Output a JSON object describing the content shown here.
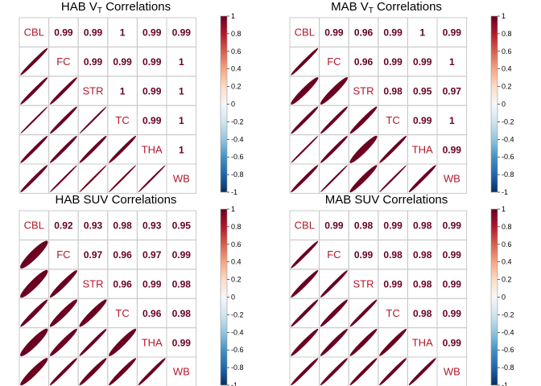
{
  "variables": [
    "CBL",
    "FC",
    "STR",
    "TC",
    "THA",
    "WB"
  ],
  "colorbar": {
    "ticks": [
      "1",
      "0.8",
      "0.6",
      "0.4",
      "0.2",
      "0",
      "-0.2",
      "-0.4",
      "-0.6",
      "-0.8",
      "-1"
    ],
    "colors": [
      "#67001f",
      "#b2182b",
      "#d6604d",
      "#f4a582",
      "#fddbc7",
      "#f7f7f7",
      "#d1e5f0",
      "#92c5de",
      "#4393c3",
      "#2166ac",
      "#053061"
    ]
  },
  "chart_data": [
    {
      "type": "heatmap",
      "title_main": "HAB V",
      "title_sub": "T",
      "title_rest": " Correlations",
      "variables": [
        "CBL",
        "FC",
        "STR",
        "TC",
        "THA",
        "WB"
      ],
      "upper_labels": [
        [
          "",
          "0.99",
          "0.99",
          "1",
          "0.99",
          "0.99"
        ],
        [
          "",
          "",
          "0.99",
          "0.99",
          "0.99",
          "1"
        ],
        [
          "",
          "",
          "",
          "1",
          "0.99",
          "1"
        ],
        [
          "",
          "",
          "",
          "",
          "0.99",
          "1"
        ],
        [
          "",
          "",
          "",
          "",
          "",
          "1"
        ],
        [
          "",
          "",
          "",
          "",
          "",
          ""
        ]
      ],
      "matrix": [
        [
          1,
          0.99,
          0.99,
          1.0,
          0.99,
          0.99
        ],
        [
          0.99,
          1,
          0.99,
          0.99,
          0.99,
          1.0
        ],
        [
          0.99,
          0.99,
          1,
          1.0,
          0.99,
          1.0
        ],
        [
          1.0,
          0.99,
          1.0,
          1,
          0.99,
          1.0
        ],
        [
          0.99,
          0.99,
          0.99,
          0.99,
          1,
          1.0
        ],
        [
          0.99,
          1.0,
          1.0,
          1.0,
          1.0,
          1
        ]
      ],
      "color_range": [
        -1,
        1
      ]
    },
    {
      "type": "heatmap",
      "title_main": "MAB V",
      "title_sub": "T",
      "title_rest": " Correlations",
      "variables": [
        "CBL",
        "FC",
        "STR",
        "TC",
        "THA",
        "WB"
      ],
      "upper_labels": [
        [
          "",
          "0.99",
          "0.96",
          "0.99",
          "1",
          "0.99"
        ],
        [
          "",
          "",
          "0.96",
          "0.99",
          "0.99",
          "1"
        ],
        [
          "",
          "",
          "",
          "0.98",
          "0.95",
          "0.97"
        ],
        [
          "",
          "",
          "",
          "",
          "0.99",
          "1"
        ],
        [
          "",
          "",
          "",
          "",
          "",
          "0.99"
        ],
        [
          "",
          "",
          "",
          "",
          "",
          ""
        ]
      ],
      "matrix": [
        [
          1,
          0.99,
          0.96,
          0.99,
          1.0,
          0.99
        ],
        [
          0.99,
          1,
          0.96,
          0.99,
          0.99,
          1.0
        ],
        [
          0.96,
          0.96,
          1,
          0.98,
          0.95,
          0.97
        ],
        [
          0.99,
          0.99,
          0.98,
          1,
          0.99,
          1.0
        ],
        [
          1.0,
          0.99,
          0.95,
          0.99,
          1,
          0.99
        ],
        [
          0.99,
          1.0,
          0.97,
          1.0,
          0.99,
          1
        ]
      ],
      "color_range": [
        -1,
        1
      ]
    },
    {
      "type": "heatmap",
      "title_main": "HAB SUV Correlations",
      "title_sub": "",
      "title_rest": "",
      "variables": [
        "CBL",
        "FC",
        "STR",
        "TC",
        "THA",
        "WB"
      ],
      "upper_labels": [
        [
          "",
          "0.92",
          "0.93",
          "0.98",
          "0.93",
          "0.95"
        ],
        [
          "",
          "",
          "0.97",
          "0.96",
          "0.97",
          "0.99"
        ],
        [
          "",
          "",
          "",
          "0.96",
          "0.99",
          "0.98"
        ],
        [
          "",
          "",
          "",
          "",
          "0.96",
          "0.98"
        ],
        [
          "",
          "",
          "",
          "",
          "",
          "0.99"
        ],
        [
          "",
          "",
          "",
          "",
          "",
          ""
        ]
      ],
      "matrix": [
        [
          1,
          0.92,
          0.93,
          0.98,
          0.93,
          0.95
        ],
        [
          0.92,
          1,
          0.97,
          0.96,
          0.97,
          0.99
        ],
        [
          0.93,
          0.97,
          1,
          0.96,
          0.99,
          0.98
        ],
        [
          0.98,
          0.96,
          0.96,
          1,
          0.96,
          0.98
        ],
        [
          0.93,
          0.97,
          0.99,
          0.96,
          1,
          0.99
        ],
        [
          0.95,
          0.99,
          0.98,
          0.98,
          0.99,
          1
        ]
      ],
      "color_range": [
        -1,
        1
      ]
    },
    {
      "type": "heatmap",
      "title_main": "MAB SUV Correlations",
      "title_sub": "",
      "title_rest": "",
      "variables": [
        "CBL",
        "FC",
        "STR",
        "TC",
        "THA",
        "WB"
      ],
      "upper_labels": [
        [
          "",
          "0.99",
          "0.98",
          "0.99",
          "0.98",
          "0.99"
        ],
        [
          "",
          "",
          "0.99",
          "0.98",
          "0.98",
          "0.99"
        ],
        [
          "",
          "",
          "",
          "0.99",
          "0.98",
          "0.99"
        ],
        [
          "",
          "",
          "",
          "",
          "0.98",
          "0.99"
        ],
        [
          "",
          "",
          "",
          "",
          "",
          "0.99"
        ],
        [
          "",
          "",
          "",
          "",
          "",
          ""
        ]
      ],
      "matrix": [
        [
          1,
          0.99,
          0.98,
          0.99,
          0.98,
          0.99
        ],
        [
          0.99,
          1,
          0.99,
          0.98,
          0.98,
          0.99
        ],
        [
          0.98,
          0.99,
          1,
          0.99,
          0.98,
          0.99
        ],
        [
          0.99,
          0.98,
          0.99,
          1,
          0.98,
          0.99
        ],
        [
          0.98,
          0.98,
          0.98,
          0.98,
          1,
          0.99
        ],
        [
          0.99,
          0.99,
          0.99,
          0.99,
          0.99,
          1
        ]
      ],
      "color_range": [
        -1,
        1
      ]
    }
  ]
}
